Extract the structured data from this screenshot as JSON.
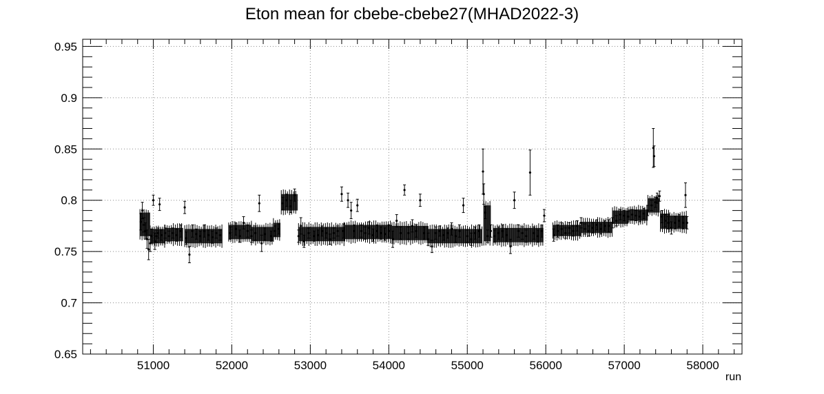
{
  "chart_data": {
    "type": "scatter",
    "title": "Eton mean for cbebe-cbebe27(MHAD2022-3)",
    "xlabel": "run",
    "ylabel": "",
    "xlim": [
      50100,
      58500
    ],
    "ylim": [
      0.65,
      0.957
    ],
    "grid": true,
    "error_bars": true,
    "x_ticks": [
      51000,
      52000,
      53000,
      54000,
      55000,
      56000,
      57000,
      58000
    ],
    "x_tick_labels": [
      "51000",
      "52000",
      "53000",
      "54000",
      "55000",
      "56000",
      "57000",
      "58000"
    ],
    "y_ticks": [
      0.65,
      0.7,
      0.75,
      0.8,
      0.85,
      0.9,
      0.95
    ],
    "y_tick_labels": [
      "0.65",
      "0.7",
      "0.75",
      "0.8",
      "0.85",
      "0.9",
      "0.95"
    ],
    "points": [
      [
        50840,
        0.779,
        0.008
      ],
      [
        50860,
        0.79,
        0.008
      ],
      [
        50880,
        0.776,
        0.007
      ],
      [
        50900,
        0.77,
        0.008
      ],
      [
        50920,
        0.762,
        0.009
      ],
      [
        50940,
        0.752,
        0.01
      ],
      [
        50960,
        0.758,
        0.008
      ],
      [
        50980,
        0.765,
        0.007
      ],
      [
        51000,
        0.8,
        0.005
      ],
      [
        51020,
        0.76,
        0.008
      ],
      [
        51040,
        0.765,
        0.006
      ],
      [
        51060,
        0.768,
        0.005
      ],
      [
        51080,
        0.796,
        0.006
      ],
      [
        51100,
        0.766,
        0.005
      ],
      [
        51150,
        0.768,
        0.005
      ],
      [
        51200,
        0.765,
        0.005
      ],
      [
        51250,
        0.768,
        0.005
      ],
      [
        51300,
        0.766,
        0.006
      ],
      [
        51350,
        0.77,
        0.006
      ],
      [
        51400,
        0.793,
        0.006
      ],
      [
        51420,
        0.763,
        0.006
      ],
      [
        51460,
        0.747,
        0.008
      ],
      [
        51500,
        0.77,
        0.006
      ],
      [
        51550,
        0.767,
        0.005
      ],
      [
        51600,
        0.765,
        0.005
      ],
      [
        51650,
        0.77,
        0.006
      ],
      [
        51700,
        0.766,
        0.005
      ],
      [
        51750,
        0.764,
        0.006
      ],
      [
        51800,
        0.768,
        0.005
      ],
      [
        51850,
        0.766,
        0.005
      ],
      [
        51980,
        0.768,
        0.006
      ],
      [
        52050,
        0.772,
        0.006
      ],
      [
        52100,
        0.765,
        0.006
      ],
      [
        52150,
        0.778,
        0.006
      ],
      [
        52200,
        0.77,
        0.006
      ],
      [
        52250,
        0.765,
        0.006
      ],
      [
        52300,
        0.768,
        0.007
      ],
      [
        52350,
        0.797,
        0.008
      ],
      [
        52380,
        0.758,
        0.008
      ],
      [
        52420,
        0.767,
        0.006
      ],
      [
        52500,
        0.765,
        0.005
      ],
      [
        52550,
        0.77,
        0.005
      ],
      [
        52600,
        0.772,
        0.005
      ],
      [
        52650,
        0.797,
        0.006
      ],
      [
        52700,
        0.8,
        0.006
      ],
      [
        52750,
        0.794,
        0.006
      ],
      [
        52800,
        0.805,
        0.006
      ],
      [
        52850,
        0.765,
        0.006
      ],
      [
        52880,
        0.775,
        0.008
      ],
      [
        52920,
        0.76,
        0.006
      ],
      [
        52980,
        0.768,
        0.005
      ],
      [
        53050,
        0.765,
        0.005
      ],
      [
        53100,
        0.766,
        0.005
      ],
      [
        53150,
        0.77,
        0.005
      ],
      [
        53200,
        0.768,
        0.005
      ],
      [
        53250,
        0.762,
        0.005
      ],
      [
        53300,
        0.768,
        0.005
      ],
      [
        53350,
        0.77,
        0.005
      ],
      [
        53400,
        0.806,
        0.007
      ],
      [
        53420,
        0.77,
        0.007
      ],
      [
        53480,
        0.8,
        0.007
      ],
      [
        53520,
        0.79,
        0.008
      ],
      [
        53560,
        0.77,
        0.006
      ],
      [
        53600,
        0.795,
        0.006
      ],
      [
        53650,
        0.77,
        0.006
      ],
      [
        53700,
        0.768,
        0.006
      ],
      [
        53750,
        0.773,
        0.006
      ],
      [
        53800,
        0.766,
        0.006
      ],
      [
        53850,
        0.77,
        0.006
      ],
      [
        53900,
        0.768,
        0.006
      ],
      [
        53950,
        0.767,
        0.006
      ],
      [
        54000,
        0.77,
        0.006
      ],
      [
        54050,
        0.762,
        0.008
      ],
      [
        54100,
        0.78,
        0.006
      ],
      [
        54150,
        0.768,
        0.006
      ],
      [
        54200,
        0.81,
        0.005
      ],
      [
        54250,
        0.768,
        0.006
      ],
      [
        54300,
        0.775,
        0.006
      ],
      [
        54350,
        0.77,
        0.006
      ],
      [
        54400,
        0.8,
        0.006
      ],
      [
        54450,
        0.768,
        0.006
      ],
      [
        54500,
        0.762,
        0.006
      ],
      [
        54550,
        0.755,
        0.006
      ],
      [
        54600,
        0.768,
        0.006
      ],
      [
        54650,
        0.77,
        0.005
      ],
      [
        54700,
        0.766,
        0.005
      ],
      [
        54750,
        0.768,
        0.005
      ],
      [
        54800,
        0.772,
        0.006
      ],
      [
        54850,
        0.765,
        0.006
      ],
      [
        54900,
        0.77,
        0.006
      ],
      [
        54950,
        0.795,
        0.007
      ],
      [
        55000,
        0.765,
        0.006
      ],
      [
        55050,
        0.762,
        0.006
      ],
      [
        55100,
        0.768,
        0.006
      ],
      [
        55150,
        0.77,
        0.006
      ],
      [
        55200,
        0.828,
        0.022
      ],
      [
        55210,
        0.806,
        0.01
      ],
      [
        55230,
        0.788,
        0.006
      ],
      [
        55260,
        0.765,
        0.006
      ],
      [
        55300,
        0.77,
        0.006
      ],
      [
        55350,
        0.765,
        0.006
      ],
      [
        55400,
        0.768,
        0.006
      ],
      [
        55450,
        0.77,
        0.006
      ],
      [
        55500,
        0.766,
        0.006
      ],
      [
        55550,
        0.755,
        0.007
      ],
      [
        55600,
        0.8,
        0.008
      ],
      [
        55650,
        0.77,
        0.006
      ],
      [
        55700,
        0.768,
        0.006
      ],
      [
        55750,
        0.765,
        0.006
      ],
      [
        55800,
        0.827,
        0.022
      ],
      [
        55850,
        0.768,
        0.006
      ],
      [
        55900,
        0.765,
        0.006
      ],
      [
        55950,
        0.77,
        0.006
      ],
      [
        55980,
        0.785,
        0.006
      ],
      [
        56100,
        0.766,
        0.006
      ],
      [
        56150,
        0.77,
        0.006
      ],
      [
        56200,
        0.772,
        0.006
      ],
      [
        56250,
        0.768,
        0.005
      ],
      [
        56300,
        0.773,
        0.005
      ],
      [
        56350,
        0.77,
        0.005
      ],
      [
        56400,
        0.775,
        0.005
      ],
      [
        56450,
        0.778,
        0.005
      ],
      [
        56500,
        0.772,
        0.005
      ],
      [
        56550,
        0.77,
        0.005
      ],
      [
        56600,
        0.773,
        0.005
      ],
      [
        56650,
        0.776,
        0.005
      ],
      [
        56700,
        0.772,
        0.005
      ],
      [
        56750,
        0.775,
        0.005
      ],
      [
        56800,
        0.775,
        0.006
      ],
      [
        56850,
        0.778,
        0.005
      ],
      [
        56900,
        0.78,
        0.005
      ],
      [
        56950,
        0.786,
        0.005
      ],
      [
        57000,
        0.785,
        0.005
      ],
      [
        57050,
        0.784,
        0.005
      ],
      [
        57100,
        0.786,
        0.005
      ],
      [
        57150,
        0.785,
        0.005
      ],
      [
        57200,
        0.784,
        0.005
      ],
      [
        57250,
        0.787,
        0.005
      ],
      [
        57300,
        0.79,
        0.005
      ],
      [
        57350,
        0.795,
        0.005
      ],
      [
        57370,
        0.851,
        0.019
      ],
      [
        57380,
        0.843,
        0.01
      ],
      [
        57400,
        0.798,
        0.005
      ],
      [
        57420,
        0.802,
        0.005
      ],
      [
        57450,
        0.804,
        0.005
      ],
      [
        57480,
        0.784,
        0.006
      ],
      [
        57520,
        0.78,
        0.006
      ],
      [
        57560,
        0.778,
        0.006
      ],
      [
        57600,
        0.773,
        0.006
      ],
      [
        57650,
        0.778,
        0.006
      ],
      [
        57700,
        0.78,
        0.006
      ],
      [
        57750,
        0.778,
        0.006
      ],
      [
        57780,
        0.805,
        0.012
      ],
      [
        57800,
        0.778,
        0.006
      ]
    ],
    "bands": [
      [
        50830,
        50960,
        0.765,
        0.788
      ],
      [
        50960,
        51150,
        0.758,
        0.772
      ],
      [
        51150,
        51380,
        0.76,
        0.773
      ],
      [
        51400,
        51880,
        0.758,
        0.772
      ],
      [
        51960,
        52250,
        0.762,
        0.776
      ],
      [
        52250,
        52530,
        0.76,
        0.774
      ],
      [
        52530,
        52620,
        0.764,
        0.778
      ],
      [
        52630,
        52840,
        0.79,
        0.806
      ],
      [
        52850,
        53440,
        0.76,
        0.774
      ],
      [
        53440,
        54040,
        0.762,
        0.776
      ],
      [
        54040,
        54500,
        0.761,
        0.775
      ],
      [
        54500,
        54950,
        0.758,
        0.772
      ],
      [
        54950,
        55190,
        0.758,
        0.772
      ],
      [
        55210,
        55300,
        0.76,
        0.795
      ],
      [
        55330,
        55970,
        0.759,
        0.773
      ],
      [
        56090,
        56450,
        0.765,
        0.776
      ],
      [
        56450,
        56850,
        0.768,
        0.779
      ],
      [
        56850,
        57050,
        0.777,
        0.79
      ],
      [
        57050,
        57300,
        0.78,
        0.791
      ],
      [
        57300,
        57450,
        0.788,
        0.802
      ],
      [
        57460,
        57580,
        0.772,
        0.787
      ],
      [
        57580,
        57800,
        0.772,
        0.785
      ]
    ]
  }
}
